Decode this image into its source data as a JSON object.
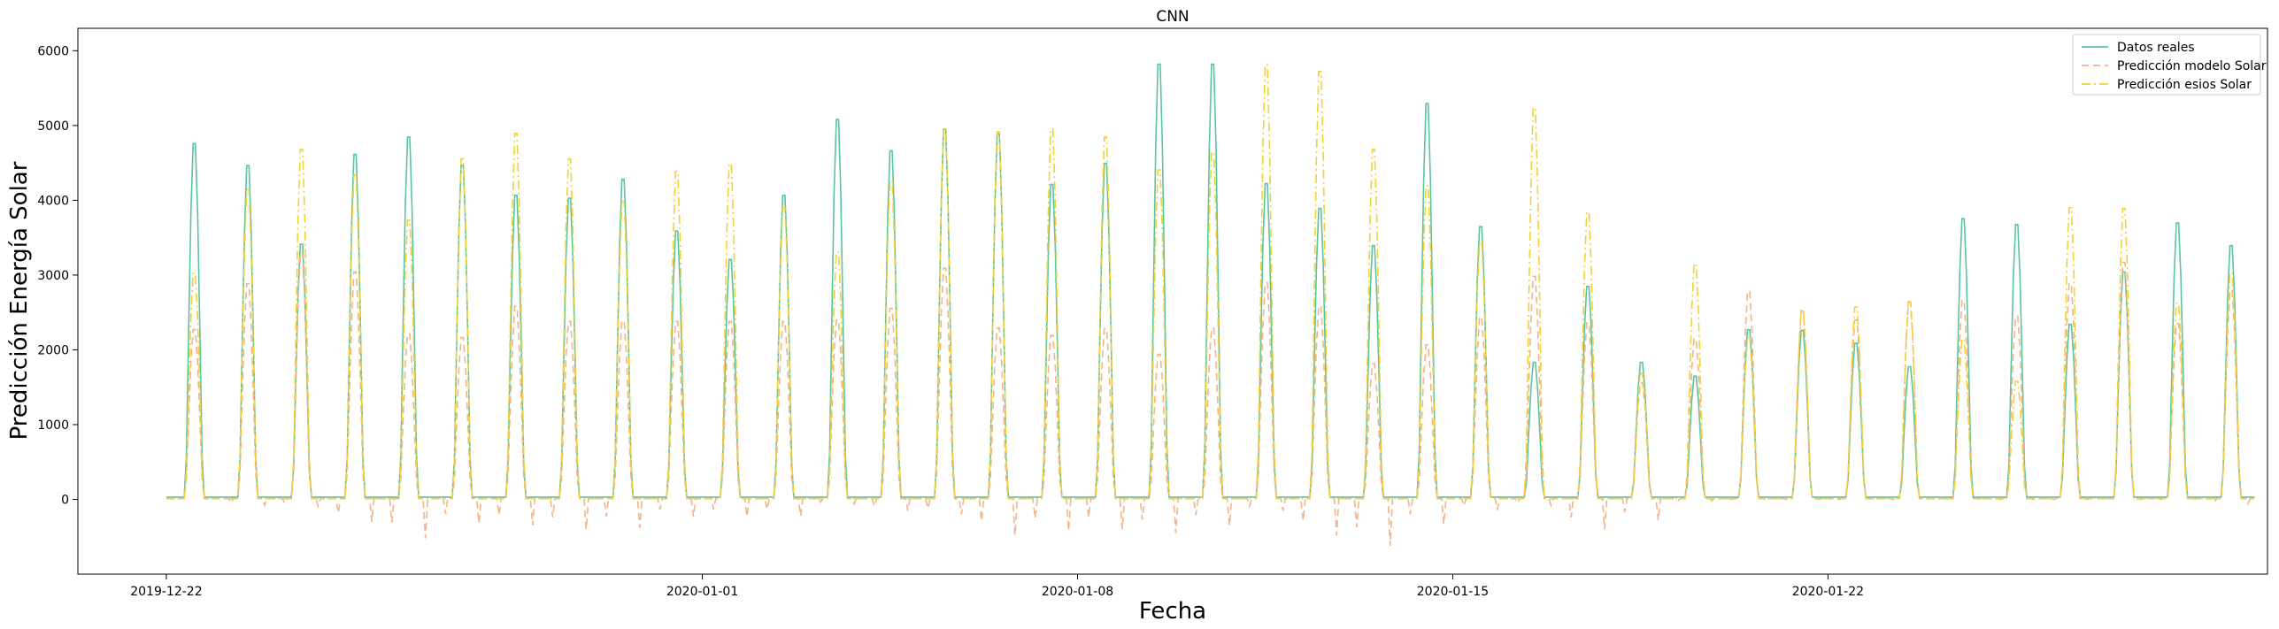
{
  "chart_data": {
    "type": "line",
    "title": "CNN",
    "xlabel": "Fecha",
    "ylabel": "Predicción Energía Solar",
    "x_tick_labels": [
      "2019-12-22",
      "2020-01-01",
      "2020-01-08",
      "2020-01-15",
      "2020-01-22"
    ],
    "x_tick_days": [
      0,
      10,
      17,
      24,
      31
    ],
    "xlim_days": [
      -1.65,
      39.2
    ],
    "ylim": [
      -1000,
      6300
    ],
    "y_ticks": [
      0,
      1000,
      2000,
      3000,
      4000,
      5000,
      6000
    ],
    "x_start_date": "2019-12-22",
    "grid": false,
    "legend_position": "top-right",
    "series": [
      {
        "name": "Datos reales",
        "color": "#5ac4a0",
        "dash": "solid",
        "daily_peaks": [
          4880,
          4580,
          3500,
          4730,
          4970,
          4580,
          4170,
          4130,
          4390,
          3680,
          3290,
          4170,
          5210,
          4780,
          5080,
          5010,
          4320,
          4610,
          5970,
          5970,
          4330,
          3990,
          3480,
          5430,
          3740,
          1880,
          2920,
          1880,
          1690,
          2330,
          2320,
          2140,
          1820,
          3850,
          3770,
          2400,
          3120,
          3790,
          3480
        ]
      },
      {
        "name": "Predicción modelo Solar",
        "color": "#f2b48a",
        "dash": "dashed",
        "daily_peaks": [
          2330,
          2960,
          3380,
          3120,
          2270,
          2220,
          2650,
          2440,
          2450,
          2440,
          2440,
          2440,
          2460,
          2620,
          3170,
          2350,
          2250,
          2340,
          1990,
          2350,
          2970,
          2650,
          1860,
          2120,
          2500,
          3060,
          2420,
          1600,
          2200,
          2850,
          2580,
          2460,
          2700,
          2730,
          2510,
          2960,
          3250,
          2410,
          2870
        ],
        "night_dips": [
          0,
          -80,
          -90,
          -300,
          -520,
          -320,
          -350,
          -400,
          -380,
          -230,
          -230,
          -220,
          -60,
          -150,
          -200,
          -480,
          -420,
          -400,
          -450,
          -350,
          -150,
          -480,
          -620,
          -330,
          -140,
          -80,
          -400,
          -280,
          -20,
          0,
          0,
          0,
          0,
          0,
          0,
          0,
          0,
          0,
          -60
        ]
      },
      {
        "name": "Predicción esios Solar",
        "color": "#f5d130",
        "dash": "dashdot",
        "daily_peaks": [
          3100,
          4250,
          4800,
          4450,
          3830,
          4670,
          5020,
          4670,
          4080,
          4500,
          4600,
          4000,
          3390,
          4370,
          5100,
          5040,
          5080,
          4970,
          4520,
          4760,
          5960,
          5870,
          4800,
          4300,
          3530,
          5370,
          3940,
          1730,
          3230,
          2220,
          2600,
          2640,
          2710,
          2200,
          1620,
          4000,
          3990,
          2690,
          3110
        ]
      }
    ]
  }
}
